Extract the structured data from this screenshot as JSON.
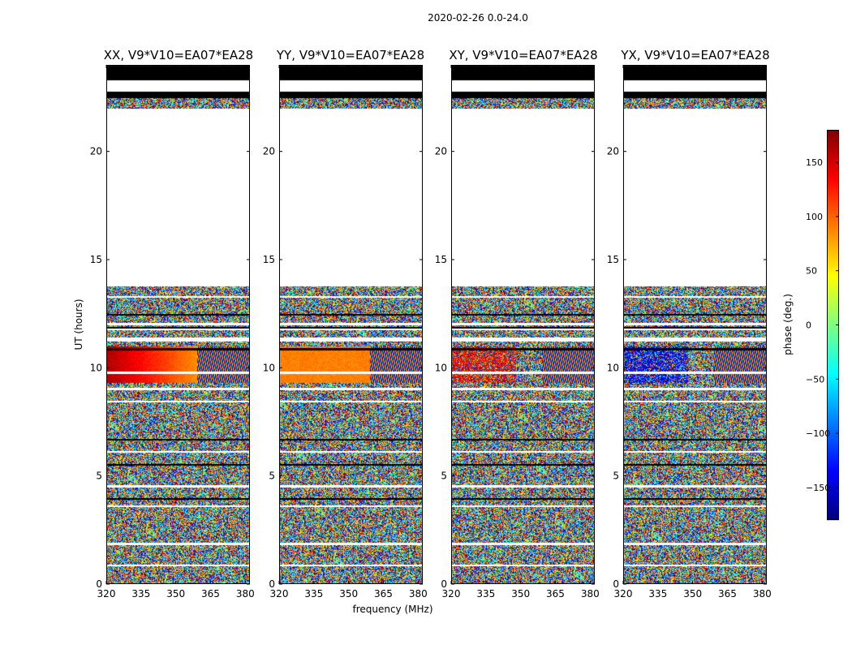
{
  "figure": {
    "suptitle": "2020-02-26 0.0-24.0"
  },
  "chart_data": {
    "type": "heatmap",
    "description_scale": "phase",
    "xlabel": "frequency (MHz)",
    "ylabel": "UT (hours)",
    "colorbar_label": "phase (deg.)",
    "xlim": [
      320,
      382
    ],
    "ylim": [
      0,
      24
    ],
    "x_ticks": [
      320,
      335,
      350,
      365,
      380
    ],
    "y_ticks": [
      0,
      5,
      10,
      15,
      20
    ],
    "colorbar_range": [
      -180,
      180
    ],
    "colorbar_ticks": [
      -150,
      -100,
      -50,
      0,
      50,
      100,
      150
    ],
    "colormap": "jet",
    "panels": [
      {
        "title": "XX, V9*V10=EA07*EA28",
        "pattern": "xx"
      },
      {
        "title": "YY, V9*V10=EA07*EA28",
        "pattern": "yy"
      },
      {
        "title": "XY, V9*V10=EA07*EA28",
        "pattern": "xy"
      },
      {
        "title": "YX, V9*V10=EA07*EA28",
        "pattern": "yx"
      }
    ],
    "blank_hours": [
      [
        13.8,
        22.0
      ],
      [
        22.8,
        23.3
      ]
    ],
    "flagged_black_hours": [
      [
        23.3,
        24.0
      ],
      [
        22.5,
        22.8
      ]
    ],
    "calibrator_hours": [
      9.3,
      11.0
    ]
  }
}
